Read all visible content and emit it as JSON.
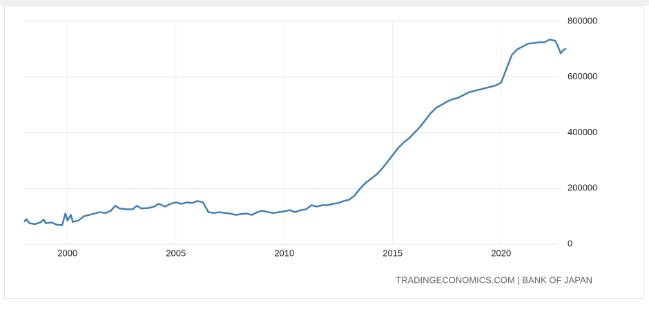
{
  "chart_data": {
    "type": "line",
    "x": [
      1998.0,
      1998.1,
      1998.25,
      1998.5,
      1998.75,
      1998.9,
      1999.0,
      1999.25,
      1999.5,
      1999.75,
      1999.9,
      2000.0,
      2000.15,
      2000.25,
      2000.5,
      2000.75,
      2001.0,
      2001.25,
      2001.5,
      2001.75,
      2002.0,
      2002.2,
      2002.4,
      2002.75,
      2003.0,
      2003.2,
      2003.4,
      2003.75,
      2004.0,
      2004.2,
      2004.5,
      2004.75,
      2005.0,
      2005.25,
      2005.5,
      2005.75,
      2006.0,
      2006.25,
      2006.5,
      2006.75,
      2007.0,
      2007.25,
      2007.5,
      2007.75,
      2008.0,
      2008.25,
      2008.5,
      2008.75,
      2009.0,
      2009.25,
      2009.5,
      2009.75,
      2010.0,
      2010.25,
      2010.5,
      2010.75,
      2011.0,
      2011.25,
      2011.5,
      2011.75,
      2012.0,
      2012.25,
      2012.5,
      2012.75,
      2013.0,
      2013.25,
      2013.5,
      2013.75,
      2014.0,
      2014.25,
      2014.5,
      2014.75,
      2015.0,
      2015.25,
      2015.5,
      2015.75,
      2016.0,
      2016.25,
      2016.5,
      2016.75,
      2017.0,
      2017.25,
      2017.5,
      2017.75,
      2018.0,
      2018.25,
      2018.5,
      2018.75,
      2019.0,
      2019.25,
      2019.5,
      2019.75,
      2020.0,
      2020.25,
      2020.5,
      2020.75,
      2021.0,
      2021.25,
      2021.5,
      2021.75,
      2022.0,
      2022.25,
      2022.5,
      2022.6,
      2022.75,
      2022.85,
      2023.0
    ],
    "series": [
      {
        "color": "#3f7fb8",
        "values": [
          80000,
          90000,
          75000,
          72000,
          78000,
          88000,
          75000,
          78000,
          70000,
          68000,
          110000,
          85000,
          105000,
          80000,
          85000,
          100000,
          105000,
          110000,
          115000,
          112000,
          120000,
          138000,
          128000,
          125000,
          125000,
          138000,
          128000,
          130000,
          135000,
          145000,
          135000,
          145000,
          150000,
          145000,
          150000,
          148000,
          155000,
          150000,
          115000,
          112000,
          115000,
          112000,
          110000,
          105000,
          108000,
          110000,
          105000,
          115000,
          120000,
          115000,
          112000,
          115000,
          118000,
          122000,
          115000,
          122000,
          125000,
          140000,
          135000,
          140000,
          140000,
          145000,
          148000,
          155000,
          160000,
          175000,
          200000,
          220000,
          235000,
          250000,
          270000,
          295000,
          320000,
          345000,
          365000,
          380000,
          400000,
          420000,
          445000,
          470000,
          490000,
          500000,
          512000,
          520000,
          525000,
          535000,
          545000,
          550000,
          555000,
          560000,
          565000,
          570000,
          580000,
          630000,
          680000,
          700000,
          710000,
          720000,
          722000,
          725000,
          725000,
          735000,
          730000,
          715000,
          685000,
          695000,
          703000
        ]
      }
    ],
    "xlim": [
      1998,
      2023
    ],
    "xticks": [
      2000,
      2005,
      2010,
      2015,
      2020
    ],
    "ylim": [
      0,
      800000
    ],
    "yticks": [
      0,
      200000,
      400000,
      600000,
      800000
    ],
    "grid": true,
    "source": "TRADINGECONOMICS.COM | BANK OF JAPAN"
  }
}
